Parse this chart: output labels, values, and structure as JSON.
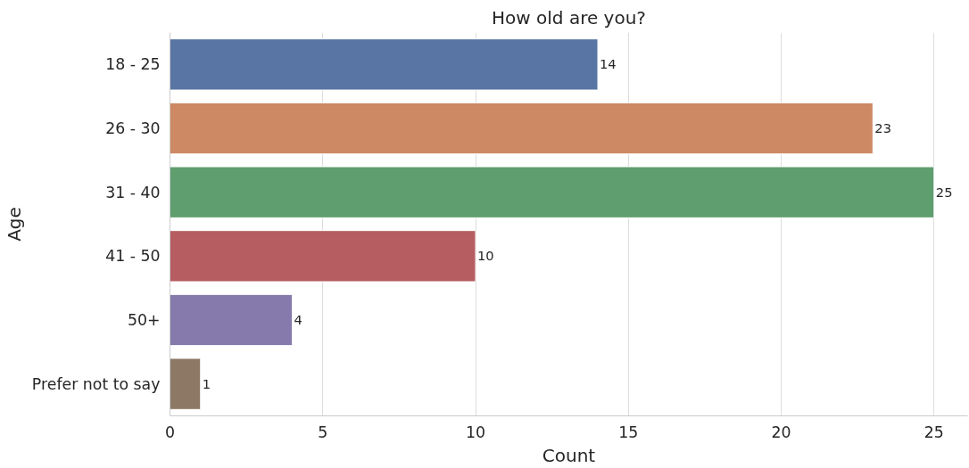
{
  "chart_data": {
    "type": "bar",
    "orientation": "horizontal",
    "title": "How old are you?",
    "xlabel": "Count",
    "ylabel": "Age",
    "categories": [
      "18 - 25",
      "26 - 30",
      "31 - 40",
      "41 - 50",
      "50+",
      "Prefer not to say"
    ],
    "values": [
      14,
      23,
      25,
      10,
      4,
      1
    ],
    "colors": [
      "#5975a4",
      "#cc8963",
      "#5f9e6e",
      "#b55d60",
      "#857aab",
      "#8d7866"
    ],
    "xlim": [
      0,
      26.1
    ],
    "xticks": [
      0,
      5,
      10,
      15,
      20,
      25
    ],
    "grid": "x",
    "data_labels": true
  }
}
